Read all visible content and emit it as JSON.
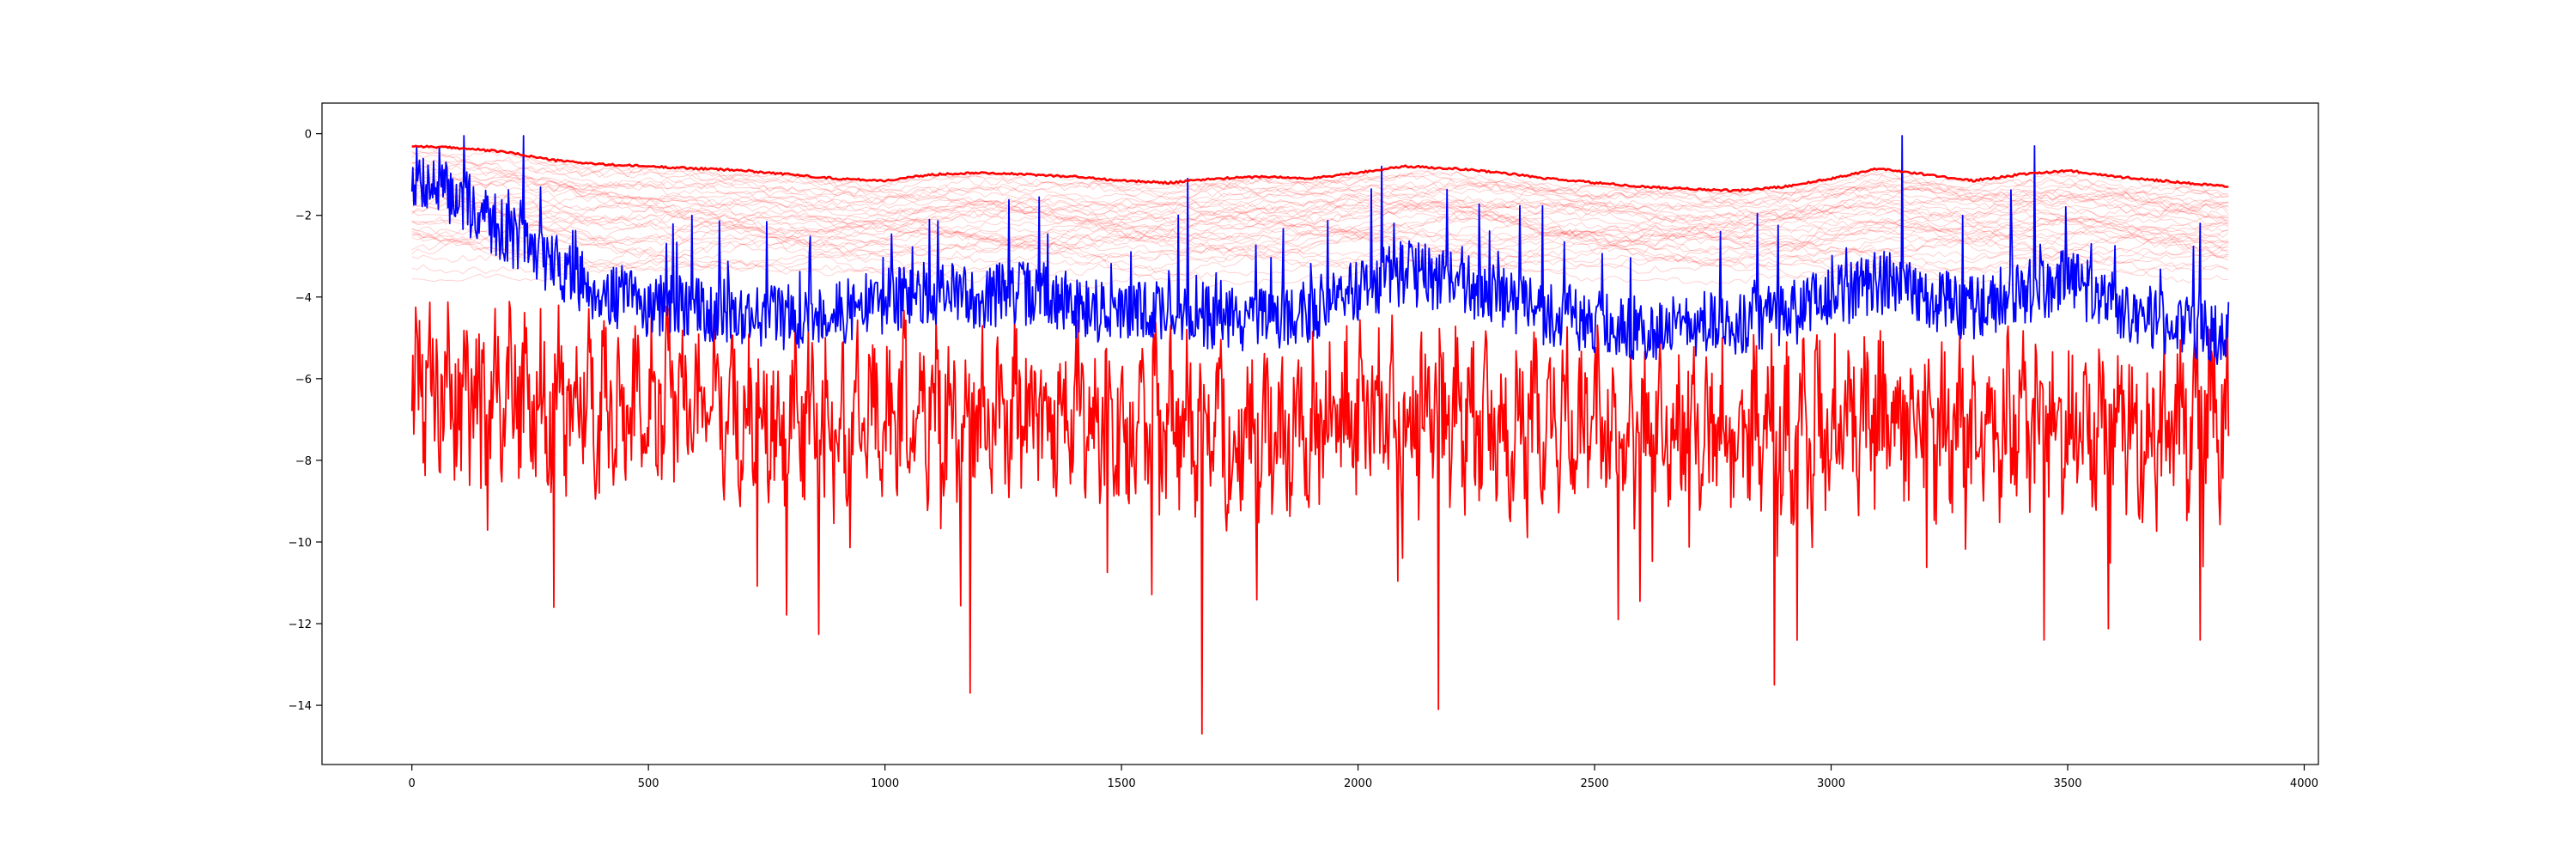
{
  "chart_data": {
    "type": "line",
    "title": "",
    "xlabel": "",
    "ylabel": "",
    "xlim": [
      -190,
      4030
    ],
    "ylim": [
      -15.45,
      0.75
    ],
    "x_ticks": [
      0,
      500,
      1000,
      1500,
      2000,
      2500,
      3000,
      3500,
      4000
    ],
    "x_tick_labels": [
      "0",
      "500",
      "1000",
      "1500",
      "2000",
      "2500",
      "3000",
      "3500",
      "4000"
    ],
    "y_ticks": [
      0,
      -2,
      -4,
      -6,
      -8,
      -10,
      -12,
      -14
    ],
    "y_tick_labels": [
      "0",
      "−2",
      "−4",
      "−6",
      "−8",
      "−10",
      "−12",
      "−14"
    ],
    "grid": false,
    "legend": "none",
    "x_range": [
      0,
      3840
    ],
    "series": [
      {
        "role": "upper-envelope",
        "color": "#ff0000",
        "style": "thick",
        "x": [
          0,
          100,
          200,
          300,
          400,
          500,
          600,
          700,
          800,
          900,
          1000,
          1100,
          1200,
          1300,
          1400,
          1500,
          1600,
          1700,
          1800,
          1900,
          2000,
          2100,
          2200,
          2300,
          2400,
          2500,
          2600,
          2700,
          2800,
          2900,
          3000,
          3100,
          3200,
          3300,
          3400,
          3500,
          3600,
          3700,
          3840
        ],
        "y": [
          -0.3,
          -0.35,
          -0.45,
          -0.65,
          -0.75,
          -0.8,
          -0.85,
          -0.9,
          -1.0,
          -1.1,
          -1.15,
          -1.0,
          -0.95,
          -1.0,
          -1.05,
          -1.15,
          -1.2,
          -1.1,
          -1.05,
          -1.1,
          -0.95,
          -0.8,
          -0.85,
          -0.95,
          -1.1,
          -1.2,
          -1.3,
          -1.35,
          -1.4,
          -1.3,
          -1.1,
          -0.85,
          -1.0,
          -1.15,
          -1.0,
          -0.9,
          -1.05,
          -1.15,
          -1.3
        ]
      },
      {
        "role": "lower-envelope",
        "color": "#ff0000",
        "style": "medium",
        "x": [
          0,
          100,
          200,
          300,
          400,
          500,
          600,
          700,
          800,
          900,
          1000,
          1100,
          1200,
          1300,
          1400,
          1500,
          1600,
          1700,
          1800,
          1900,
          2000,
          2100,
          2200,
          2300,
          2400,
          2500,
          2600,
          2700,
          2800,
          2900,
          3000,
          3100,
          3200,
          3300,
          3400,
          3500,
          3600,
          3700,
          3840
        ],
        "y": [
          -6.0,
          -6.3,
          -6.4,
          -6.6,
          -6.8,
          -6.6,
          -6.5,
          -6.8,
          -7.0,
          -7.1,
          -6.9,
          -6.7,
          -6.8,
          -6.9,
          -6.7,
          -6.9,
          -7.0,
          -7.3,
          -7.5,
          -7.2,
          -6.9,
          -6.8,
          -7.0,
          -7.2,
          -7.1,
          -7.0,
          -7.2,
          -7.0,
          -7.1,
          -7.3,
          -7.0,
          -7.0,
          -7.2,
          -7.3,
          -7.0,
          -7.2,
          -7.1,
          -7.3,
          -6.8
        ],
        "noise": "high-variance; spikes down to approximately -14.7 at x=1670, -14.1 at x=2170, -13.7 at x=1180, -13.5 at x=2880"
      },
      {
        "role": "main-signal",
        "color": "#0000ff",
        "style": "medium",
        "x": [
          0,
          100,
          200,
          300,
          400,
          500,
          600,
          700,
          800,
          900,
          1000,
          1100,
          1200,
          1300,
          1400,
          1500,
          1600,
          1700,
          1800,
          1900,
          2000,
          2100,
          2200,
          2300,
          2400,
          2500,
          2600,
          2700,
          2800,
          2900,
          3000,
          3100,
          3200,
          3300,
          3400,
          3500,
          3600,
          3700,
          3840
        ],
        "y": [
          -1.0,
          -1.6,
          -2.4,
          -3.2,
          -3.9,
          -4.2,
          -4.3,
          -4.4,
          -4.5,
          -4.4,
          -4.1,
          -3.9,
          -4.0,
          -3.9,
          -4.2,
          -4.4,
          -4.3,
          -4.5,
          -4.6,
          -4.3,
          -3.8,
          -3.4,
          -3.6,
          -4.0,
          -4.4,
          -4.6,
          -4.8,
          -4.7,
          -4.6,
          -4.5,
          -4.0,
          -3.6,
          -4.0,
          -4.3,
          -3.9,
          -3.6,
          -4.2,
          -4.6,
          -4.9
        ],
        "noise": "moderate-variance; spikes up to approximately -0.05 at x=3150, -0.3 at x=3430"
      }
    ],
    "ensemble": {
      "role": "faint-envelope-traces",
      "color": "#ff0000",
      "opacity": 0.18,
      "count": 40,
      "y_band": [
        -3.6,
        -0.5
      ]
    }
  }
}
